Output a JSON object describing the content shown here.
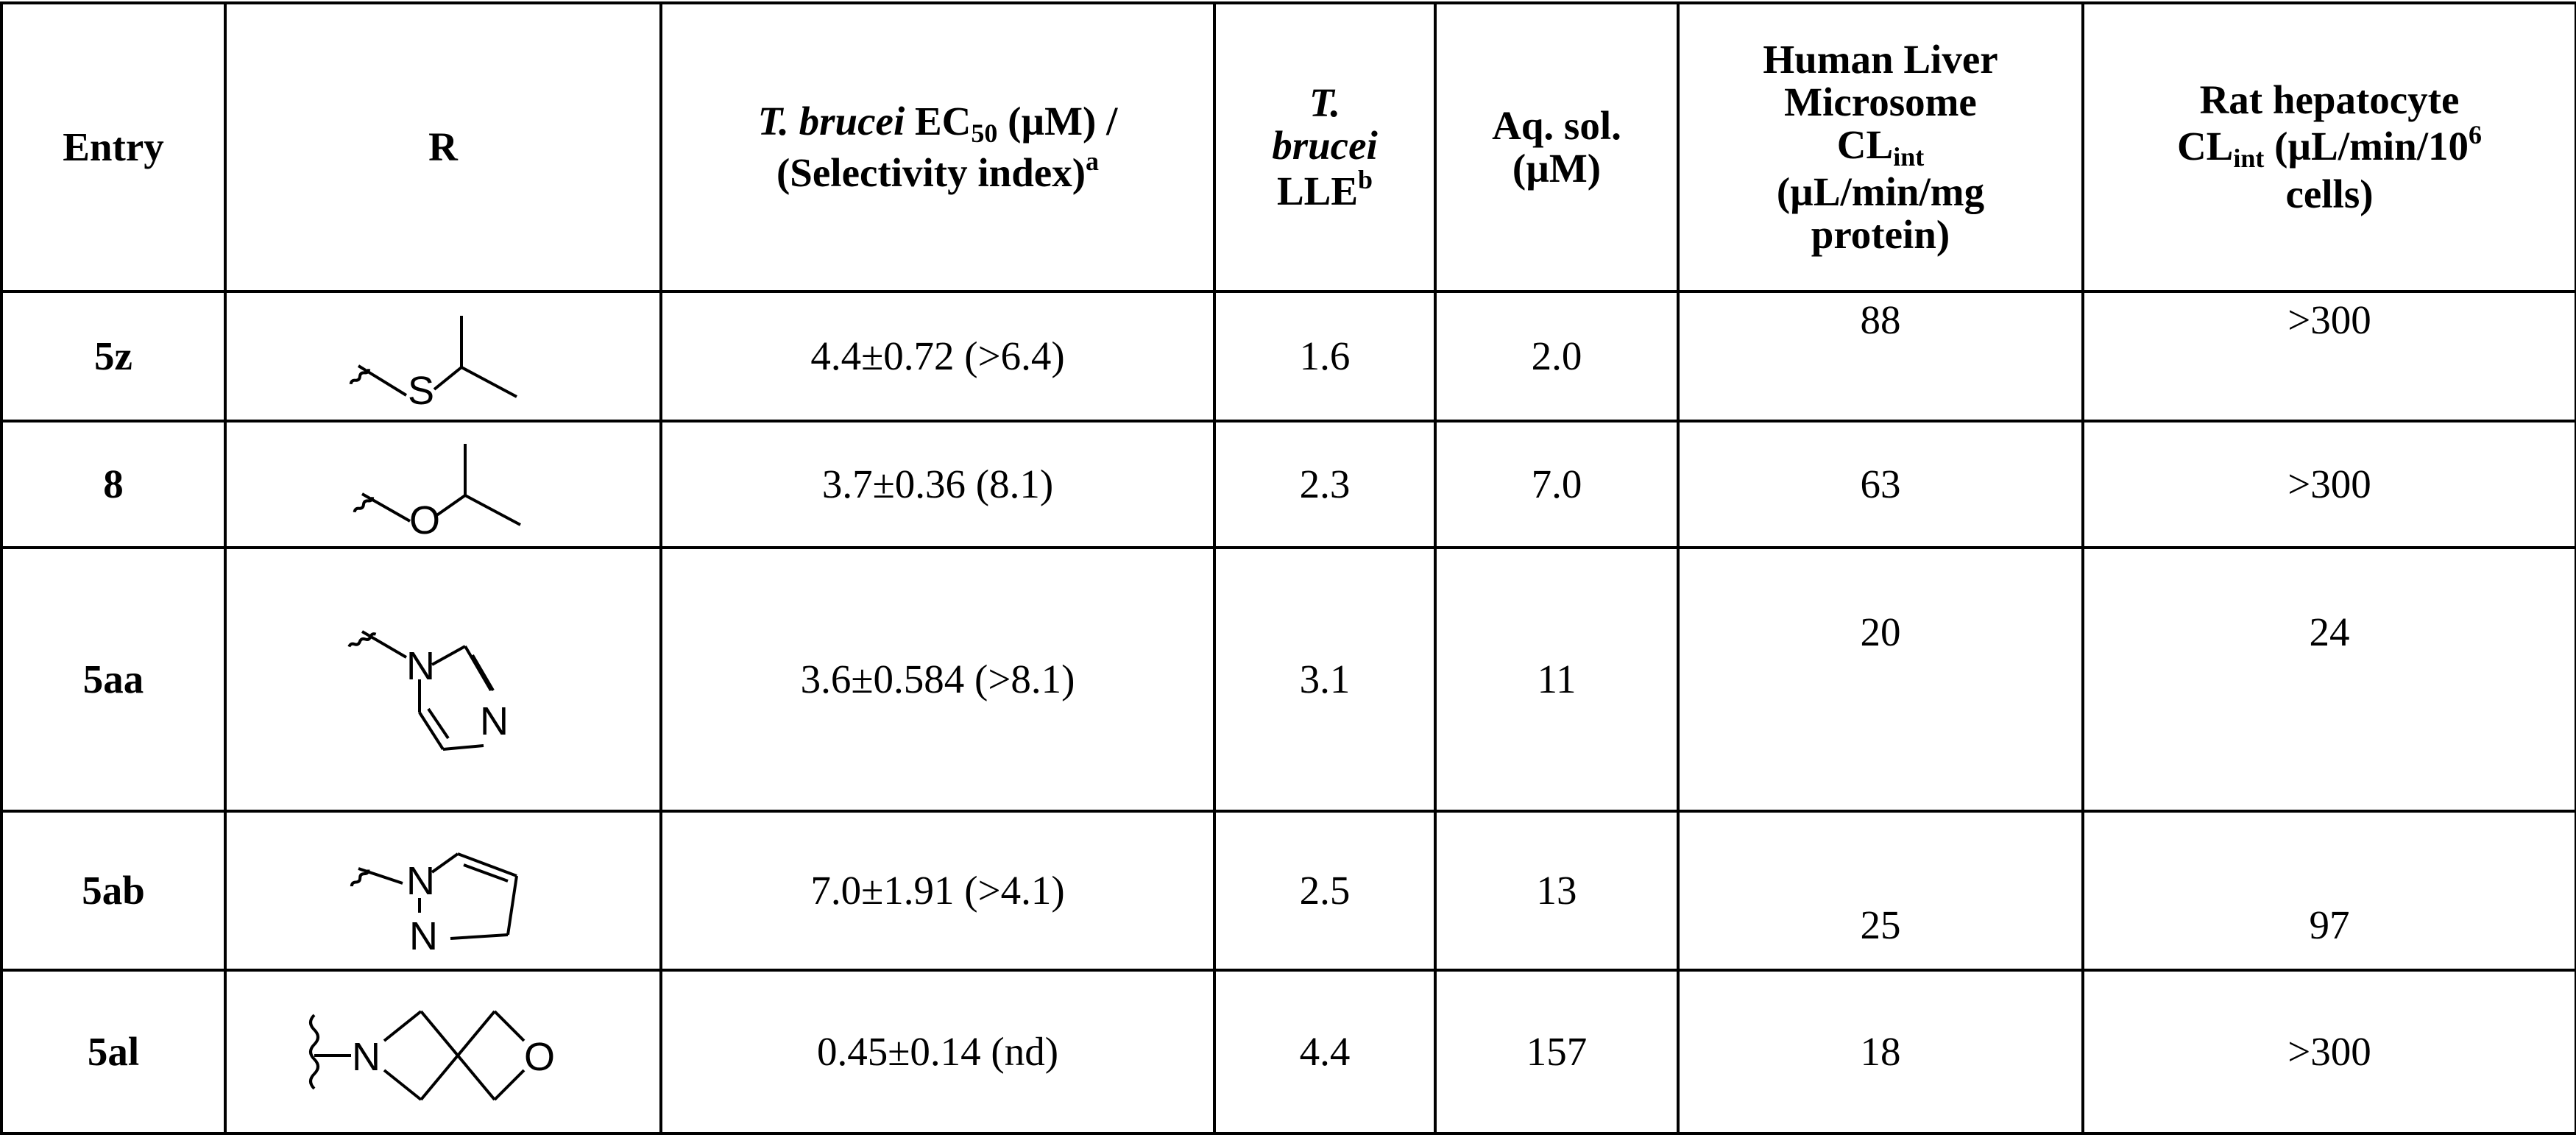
{
  "headers": {
    "entry": "Entry",
    "r": "R",
    "ec50_a": "T. brucei",
    "ec50_b": " EC",
    "ec50_sub": "50",
    "ec50_c": " (µM) /",
    "ec50_d": "(Selectivity index)",
    "ec50_sup": "a",
    "lle_a": "T.",
    "lle_b": "brucei",
    "lle_c": "LLE",
    "lle_sup": "b",
    "sol_a": "Aq. sol.",
    "sol_b": "(µM)",
    "hlm_a": "Human Liver",
    "hlm_b": "Microsome",
    "hlm_c": "CL",
    "hlm_sub": "int",
    "hlm_d": "(µL/min/mg",
    "hlm_e": "protein)",
    "rat_a": "Rat hepatocyte",
    "rat_b": "CL",
    "rat_sub": "int",
    "rat_c": " (µL/min/10",
    "rat_sup": "6",
    "rat_d": "cells)"
  },
  "rows": [
    {
      "entry": "5z",
      "r_icon": "isopropylthio-structure-icon",
      "atoms": [
        "S"
      ],
      "ec50": "4.4±0.72 (>6.4)",
      "lle": "1.6",
      "sol": "2.0",
      "hlm": "88",
      "rat": ">300"
    },
    {
      "entry": "8",
      "r_icon": "isopropoxy-structure-icon",
      "atoms": [
        "O"
      ],
      "ec50": "3.7±0.36 (8.1)",
      "lle": "2.3",
      "sol": "7.0",
      "hlm": "63",
      "rat": ">300"
    },
    {
      "entry": "5aa",
      "r_icon": "imidazolyl-structure-icon",
      "atoms": [
        "N",
        "N"
      ],
      "ec50": "3.6±0.584 (>8.1)",
      "lle": "3.1",
      "sol": "11",
      "hlm": "20",
      "rat": "24"
    },
    {
      "entry": "5ab",
      "r_icon": "pyrazolyl-structure-icon",
      "atoms": [
        "N",
        "N"
      ],
      "ec50": "7.0±1.91 (>4.1)",
      "lle": "2.5",
      "sol": "13",
      "hlm": "25",
      "rat": "97"
    },
    {
      "entry": "5al",
      "r_icon": "oxa-azaspiro-structure-icon",
      "atoms": [
        "N",
        "O"
      ],
      "ec50": "0.45±0.14 (nd)",
      "lle": "4.4",
      "sol": "157",
      "hlm": "18",
      "rat": ">300"
    }
  ]
}
